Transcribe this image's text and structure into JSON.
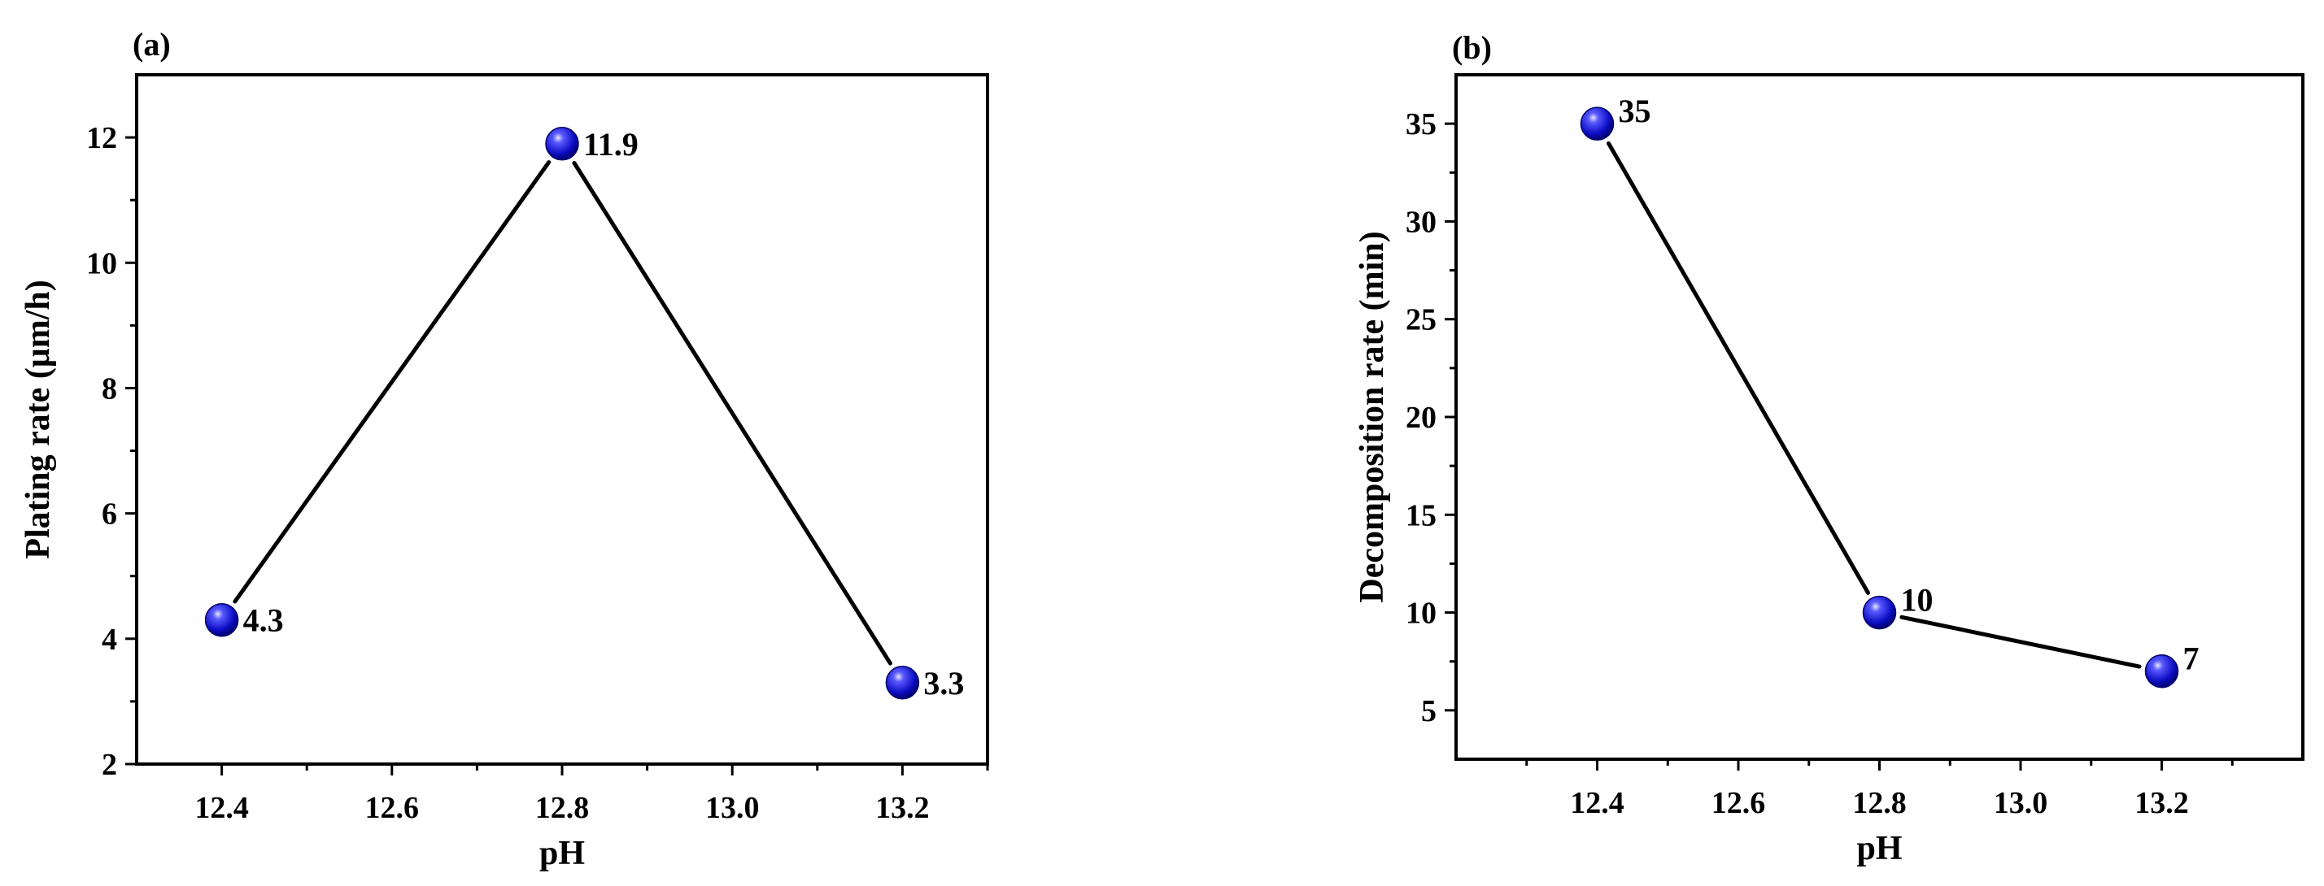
{
  "chart_data": [
    {
      "panel_label": "(a)",
      "type": "line",
      "xlabel": "pH",
      "ylabel": "Plating rate (μm/h)",
      "x": [
        12.4,
        12.8,
        13.2
      ],
      "y": [
        4.3,
        11.9,
        3.3
      ],
      "data_labels": [
        "4.3",
        "11.9",
        "3.3"
      ],
      "xlim": [
        12.3,
        13.3
      ],
      "ylim": [
        2,
        13
      ],
      "xticks": [
        12.4,
        12.6,
        12.8,
        13.0,
        13.2
      ],
      "xtick_labels": [
        "12.4",
        "12.6",
        "12.8",
        "13.0",
        "13.2"
      ],
      "yticks": [
        2,
        4,
        6,
        8,
        10,
        12
      ],
      "ytick_labels": [
        "2",
        "4",
        "6",
        "8",
        "10",
        "12"
      ],
      "grid": false,
      "legend": "none",
      "marker": "sphere",
      "marker_color": "#1010c8",
      "line_color": "#000000"
    },
    {
      "panel_label": "(b)",
      "type": "line",
      "xlabel": "pH",
      "ylabel": "Decomposition rate (min)",
      "x": [
        12.4,
        12.8,
        13.2
      ],
      "y": [
        35,
        10,
        7
      ],
      "data_labels": [
        "35",
        "10",
        "7"
      ],
      "xlim": [
        12.2,
        13.4
      ],
      "ylim": [
        2.5,
        37.5
      ],
      "xticks": [
        12.4,
        12.6,
        12.8,
        13.0,
        13.2
      ],
      "xtick_labels": [
        "12.4",
        "12.6",
        "12.8",
        "13.0",
        "13.2"
      ],
      "yticks": [
        5,
        10,
        15,
        20,
        25,
        30,
        35
      ],
      "ytick_labels": [
        "5",
        "10",
        "15",
        "20",
        "25",
        "30",
        "35"
      ],
      "grid": false,
      "legend": "none",
      "marker": "sphere",
      "marker_color": "#1010c8",
      "line_color": "#000000"
    }
  ]
}
